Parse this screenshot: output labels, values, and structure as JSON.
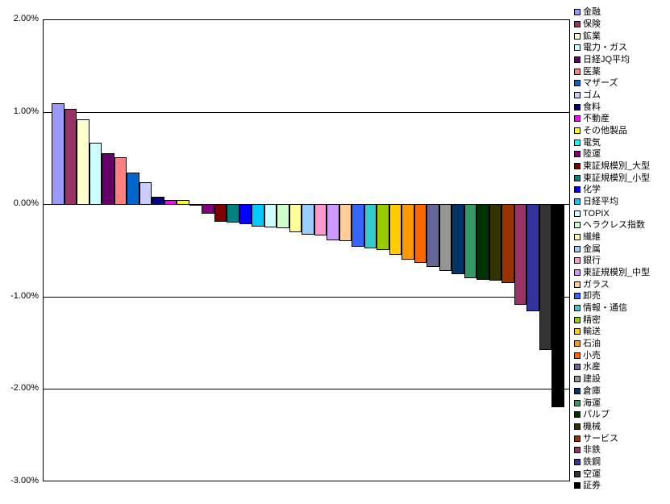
{
  "chart_data": {
    "type": "bar",
    "title": "",
    "xlabel": "",
    "ylabel": "",
    "ylim": [
      -3,
      2
    ],
    "grid": true,
    "legend_position": "right",
    "sort_order": "descending",
    "value_format": "percent",
    "ytick_labels": [
      "2.00%",
      "1.00%",
      "0.00%",
      "-1.00%",
      "-2.00%",
      "-3.00%"
    ],
    "ytick_values": [
      2,
      1,
      0,
      -1,
      -2,
      -3
    ],
    "series": [
      {
        "name": "金融",
        "value": 1.1,
        "color": "#9999FF"
      },
      {
        "name": "保険",
        "value": 1.04,
        "color": "#993366"
      },
      {
        "name": "鉱業",
        "value": 0.93,
        "color": "#FFFFCC"
      },
      {
        "name": "電力・ガス",
        "value": 0.67,
        "color": "#CCFFFF"
      },
      {
        "name": "日経JQ平均",
        "value": 0.56,
        "color": "#660066"
      },
      {
        "name": "医薬",
        "value": 0.52,
        "color": "#FF8080"
      },
      {
        "name": "マザーズ",
        "value": 0.35,
        "color": "#0066CC"
      },
      {
        "name": "ゴム",
        "value": 0.25,
        "color": "#CCCCFF"
      },
      {
        "name": "食料",
        "value": 0.09,
        "color": "#000080"
      },
      {
        "name": "不動産",
        "value": 0.05,
        "color": "#FF00FF"
      },
      {
        "name": "その他製品",
        "value": 0.05,
        "color": "#FFFF00"
      },
      {
        "name": "電気",
        "value": 0.01,
        "color": "#00FFFF"
      },
      {
        "name": "陸運",
        "value": -0.1,
        "color": "#800080"
      },
      {
        "name": "東証規模別_大型",
        "value": -0.19,
        "color": "#800000"
      },
      {
        "name": "東証規模別_小型",
        "value": -0.2,
        "color": "#008080"
      },
      {
        "name": "化学",
        "value": -0.22,
        "color": "#0000FF"
      },
      {
        "name": "日経平均",
        "value": -0.24,
        "color": "#00CCFF"
      },
      {
        "name": "TOPIX",
        "value": -0.25,
        "color": "#CCFFFF"
      },
      {
        "name": "ヘラクレス指数",
        "value": -0.26,
        "color": "#CCFFCC"
      },
      {
        "name": "繊維",
        "value": -0.3,
        "color": "#FFFF99"
      },
      {
        "name": "金属",
        "value": -0.33,
        "color": "#99CCFF"
      },
      {
        "name": "銀行",
        "value": -0.34,
        "color": "#FF99CC"
      },
      {
        "name": "東証規模別_中型",
        "value": -0.39,
        "color": "#CC99FF"
      },
      {
        "name": "ガラス",
        "value": -0.4,
        "color": "#FFCC99"
      },
      {
        "name": "卸売",
        "value": -0.46,
        "color": "#3366FF"
      },
      {
        "name": "情報・通信",
        "value": -0.48,
        "color": "#33CCCC"
      },
      {
        "name": "精密",
        "value": -0.5,
        "color": "#99CC00"
      },
      {
        "name": "輸送",
        "value": -0.55,
        "color": "#FFCC00"
      },
      {
        "name": "石油",
        "value": -0.6,
        "color": "#FF9900"
      },
      {
        "name": "小売",
        "value": -0.64,
        "color": "#FF6600"
      },
      {
        "name": "水産",
        "value": -0.68,
        "color": "#666699"
      },
      {
        "name": "建設",
        "value": -0.72,
        "color": "#969696"
      },
      {
        "name": "倉庫",
        "value": -0.76,
        "color": "#003366"
      },
      {
        "name": "海運",
        "value": -0.8,
        "color": "#339966"
      },
      {
        "name": "パルプ",
        "value": -0.82,
        "color": "#003300"
      },
      {
        "name": "機械",
        "value": -0.83,
        "color": "#333300"
      },
      {
        "name": "サービス",
        "value": -0.85,
        "color": "#993300"
      },
      {
        "name": "非鉄",
        "value": -1.09,
        "color": "#993366"
      },
      {
        "name": "鉄鋼",
        "value": -1.16,
        "color": "#333399"
      },
      {
        "name": "空運",
        "value": -1.58,
        "color": "#333333"
      },
      {
        "name": "証券",
        "value": -2.2,
        "color": "#000000"
      }
    ]
  }
}
